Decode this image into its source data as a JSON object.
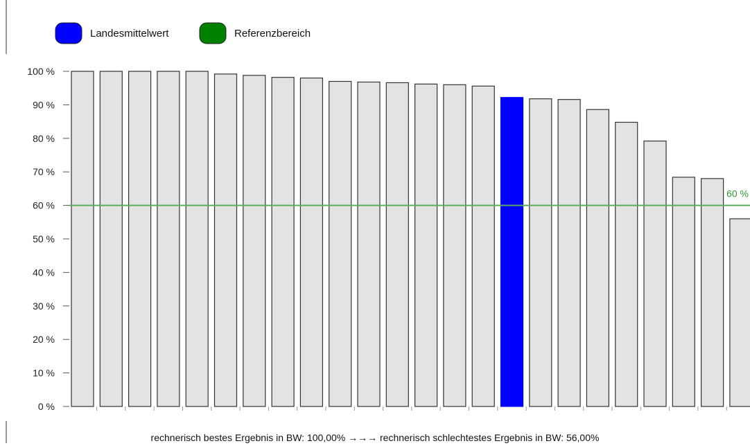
{
  "legend": {
    "mean_label": "Landesmittelwert",
    "reference_label": "Referenzbereich"
  },
  "footer": {
    "text": "rechnerisch bestes Ergebnis in BW: 100,00% →→→ rechnerisch schlechtestes Ergebnis in BW: 56,00%"
  },
  "chart_data": {
    "type": "bar",
    "title": "",
    "xlabel": "",
    "ylabel": "",
    "ylim": [
      0,
      100
    ],
    "y_ticks": [
      0,
      10,
      20,
      30,
      40,
      50,
      60,
      70,
      80,
      90,
      100
    ],
    "y_tick_labels": [
      "0 %",
      "10 %",
      "20 %",
      "30 %",
      "40 %",
      "50 %",
      "60 %",
      "70 %",
      "80 %",
      "90 %",
      "100 %"
    ],
    "values": [
      100,
      100,
      100,
      100,
      100,
      99.2,
      98.8,
      98.2,
      98.0,
      97.0,
      96.8,
      96.6,
      96.2,
      96.0,
      95.6,
      92.2,
      91.8,
      91.6,
      88.6,
      84.8,
      79.2,
      68.4,
      68.0,
      56.0
    ],
    "highlight_index": 15,
    "reference_line": {
      "value": 60,
      "label": "60 %"
    },
    "grid": false,
    "legend_position": "top-left",
    "colors": {
      "bar": "#e3e3e3",
      "bar_border": "#333333",
      "highlight": "#0000ff",
      "reference": "#5aae5a",
      "reference_text": "#2f9a2f",
      "legend_mean": "#0000ff",
      "legend_reference": "#008000"
    }
  }
}
